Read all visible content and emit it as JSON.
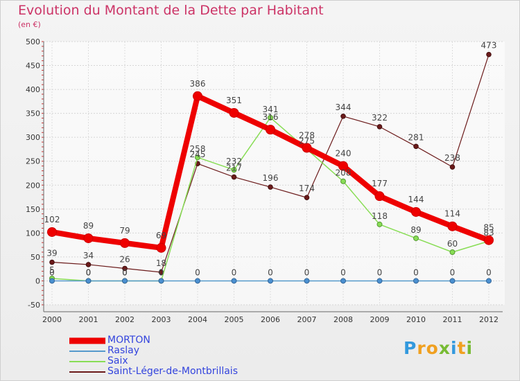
{
  "chart_data": {
    "type": "line",
    "title": "Evolution du Montant de la Dette par Habitant",
    "subtitle": "(en €)",
    "xlabel": "",
    "ylabel": "",
    "ylim": [
      -50,
      500
    ],
    "yticks": [
      -50,
      0,
      50,
      100,
      150,
      200,
      250,
      300,
      350,
      400,
      450,
      500
    ],
    "categories": [
      "2000",
      "2001",
      "2002",
      "2003",
      "2004",
      "2005",
      "2006",
      "2007",
      "2008",
      "2009",
      "2010",
      "2011",
      "2012"
    ],
    "legend_position": "bottom-left",
    "series": [
      {
        "name": "Saint-Léger-de-Montbrillais",
        "color": "#6b1a1a",
        "values": [
          39,
          34,
          26,
          18,
          245,
          217,
          196,
          174,
          344,
          322,
          281,
          238,
          473
        ],
        "labels": [
          "39",
          "34",
          "26",
          "18",
          "245",
          "217",
          "196",
          "174",
          "344",
          "322",
          "281",
          "238",
          "473"
        ]
      },
      {
        "name": "Saix",
        "color": "#88dd55",
        "values": [
          5,
          0,
          0,
          0,
          258,
          232,
          341,
          275,
          208,
          118,
          89,
          60,
          83
        ],
        "labels": [
          "5",
          "0",
          "0",
          "0",
          "258",
          "232",
          "341",
          "275",
          "208",
          "118",
          "89",
          "60",
          "83"
        ]
      },
      {
        "name": "Raslay",
        "color": "#5599cc",
        "values": [
          0,
          0,
          0,
          0,
          0,
          0,
          0,
          0,
          0,
          0,
          0,
          0,
          0
        ],
        "labels": [
          "0",
          "0",
          "0",
          "0",
          "0",
          "0",
          "0",
          "0",
          "0",
          "0",
          "0",
          "0",
          "0"
        ]
      },
      {
        "name": "MORTON",
        "color": "#ee0000",
        "values": [
          102,
          89,
          79,
          69,
          386,
          351,
          316,
          278,
          240,
          177,
          144,
          114,
          85
        ],
        "labels": [
          "102",
          "89",
          "79",
          "69",
          "386",
          "351",
          "316",
          "278",
          "240",
          "177",
          "144",
          "114",
          "85"
        ]
      }
    ]
  },
  "legend": {
    "items": [
      {
        "name": "MORTON",
        "color": "#ee0000"
      },
      {
        "name": "Raslay",
        "color": "#5599cc"
      },
      {
        "name": "Saix",
        "color": "#88dd55"
      },
      {
        "name": "Saint-Léger-de-Montbrillais",
        "color": "#6b1a1a"
      }
    ]
  },
  "logo": {
    "text": "Proxiti",
    "letters": [
      {
        "ch": "P",
        "color": "#3399dd"
      },
      {
        "ch": "r",
        "color": "#f0a020"
      },
      {
        "ch": "o",
        "color": "#f0a020"
      },
      {
        "ch": "x",
        "color": "#77bb33"
      },
      {
        "ch": "i",
        "color": "#3399dd"
      },
      {
        "ch": "t",
        "color": "#f0a020"
      },
      {
        "ch": "i",
        "color": "#77bb33"
      }
    ]
  }
}
